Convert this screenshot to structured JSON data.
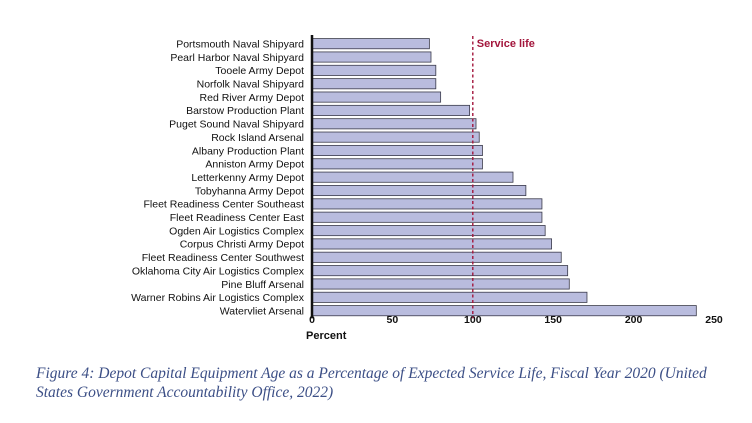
{
  "chart_data": {
    "type": "bar",
    "orientation": "horizontal",
    "categories": [
      "Portsmouth Naval Shipyard",
      "Pearl Harbor Naval Shipyard",
      "Tooele Army Depot",
      "Norfolk Naval Shipyard",
      "Red River Army Depot",
      "Barstow Production Plant",
      "Puget Sound Naval Shipyard",
      "Rock Island Arsenal",
      "Albany Production Plant",
      "Anniston Army Depot",
      "Letterkenny Army Depot",
      "Tobyhanna Army Depot",
      "Fleet Readiness Center Southeast",
      "Fleet Readiness Center East",
      "Ogden Air Logistics Complex",
      "Corpus Christi Army Depot",
      "Fleet Readiness Center Southwest",
      "Oklahoma City Air Logistics Complex",
      "Pine Bluff Arsenal",
      "Warner Robins Air Logistics Complex",
      "Watervliet Arsenal"
    ],
    "values": [
      73,
      74,
      77,
      77,
      80,
      98,
      102,
      104,
      106,
      106,
      125,
      133,
      143,
      143,
      145,
      149,
      155,
      159,
      160,
      171,
      239
    ],
    "xlabel": "Percent",
    "xlim": [
      0,
      250
    ],
    "xticks": [
      "0",
      "50",
      "100",
      "150",
      "200",
      "250"
    ],
    "reference_line": {
      "value": 100,
      "label": "Service life"
    },
    "bar_color": "#b9bcde",
    "bar_edge_color": "#3a3a4a",
    "reference_color": "#a3163c",
    "grid": false,
    "legend": "none"
  },
  "caption": "Figure 4: Depot Capital Equipment Age as a Percentage of Expected Service Life, Fiscal Year 2020 (United States Government Accountability Office, 2022)"
}
